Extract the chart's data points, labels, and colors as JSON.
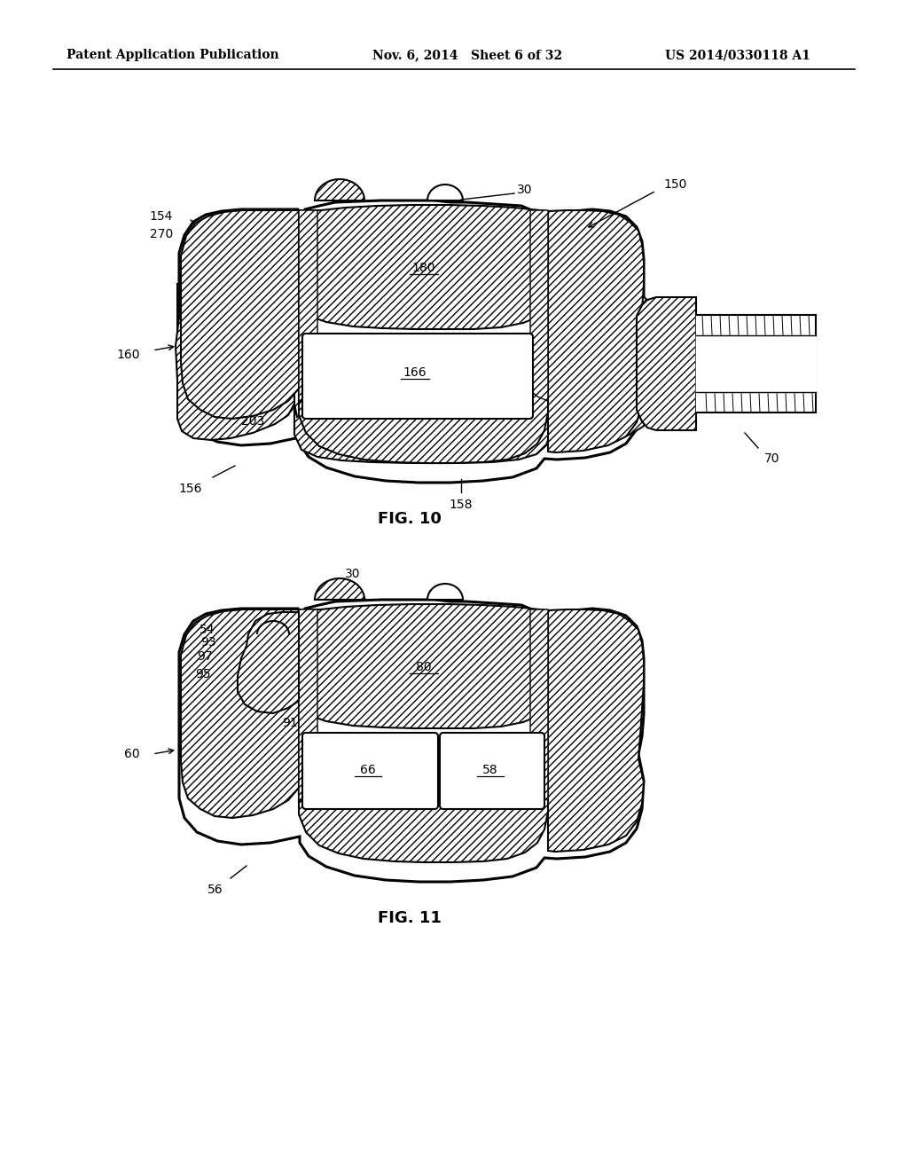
{
  "background_color": "#ffffff",
  "header_left": "Patent Application Publication",
  "header_center": "Nov. 6, 2014   Sheet 6 of 32",
  "header_right": "US 2014/0330118 A1",
  "fig10_label": "FIG. 10",
  "fig11_label": "FIG. 11",
  "line_color": "#000000"
}
